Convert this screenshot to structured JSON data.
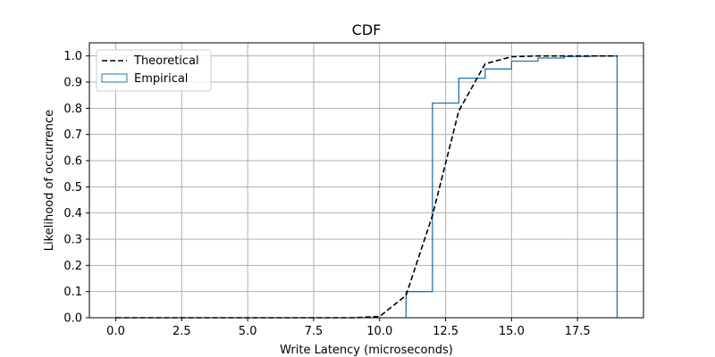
{
  "chart_data": {
    "type": "line",
    "title": "CDF",
    "xlabel": "Write Latency (microseconds)",
    "ylabel": "Likelihood of occurrence",
    "xlim": [
      -1,
      20
    ],
    "ylim": [
      0,
      1.05
    ],
    "xticks": [
      0,
      2.5,
      5,
      7.5,
      10,
      12.5,
      15,
      17.5
    ],
    "xtick_labels": [
      "0.0",
      "2.5",
      "5.0",
      "7.5",
      "10.0",
      "12.5",
      "15.0",
      "17.5"
    ],
    "yticks": [
      0,
      0.1,
      0.2,
      0.3,
      0.4,
      0.5,
      0.6,
      0.7,
      0.8,
      0.9,
      1.0
    ],
    "ytick_labels": [
      "0.0",
      "0.1",
      "0.2",
      "0.3",
      "0.4",
      "0.5",
      "0.6",
      "0.7",
      "0.8",
      "0.9",
      "1.0"
    ],
    "grid": true,
    "legend_position": "top-left",
    "series": [
      {
        "name": "Theoretical",
        "style": "dashed",
        "color": "#000000",
        "x": [
          0,
          1,
          2,
          3,
          4,
          5,
          6,
          7,
          8,
          9,
          10,
          11,
          12,
          13,
          14,
          15,
          16,
          17,
          18,
          19
        ],
        "y": [
          0,
          0,
          0,
          0,
          0,
          0,
          0,
          0,
          0,
          0,
          0.005,
          0.085,
          0.39,
          0.79,
          0.97,
          0.997,
          1.0,
          1.0,
          1.0,
          1.0
        ]
      },
      {
        "name": "Empirical",
        "style": "step-histogram",
        "color": "#1f77b4",
        "edges": [
          11,
          12,
          13,
          14,
          15,
          16,
          17,
          18,
          19
        ],
        "values": [
          0.1,
          0.82,
          0.915,
          0.95,
          0.98,
          0.992,
          0.998,
          1.0
        ]
      }
    ]
  }
}
